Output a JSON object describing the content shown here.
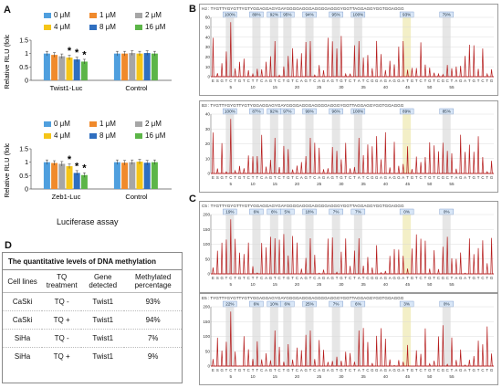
{
  "panel_a": {
    "letter": "A",
    "legend": [
      "0 μM",
      "1 μM",
      "2 μM",
      "4 μM",
      "8 μM",
      "16 μM"
    ],
    "colors": [
      "#4f9fde",
      "#f08a2c",
      "#a6a6a6",
      "#f5c518",
      "#2f6fc0",
      "#5cb548"
    ],
    "caption": "Luciferase assay"
  },
  "panel_b": {
    "letter": "B"
  },
  "panel_c": {
    "letter": "C"
  },
  "panel_d": {
    "letter": "D",
    "title": "The quantitative levels of DNA methylation",
    "headers": [
      "Cell lines",
      "TQ treatment",
      "Gene detected",
      "Methylated percentage"
    ],
    "rows": [
      [
        "CaSki",
        "TQ -",
        "Twist1",
        "93%"
      ],
      [
        "CaSki",
        "TQ +",
        "Twist1",
        "94%"
      ],
      [
        "SiHa",
        "TQ -",
        "Twist1",
        "7%"
      ],
      [
        "SiHa",
        "TQ +",
        "Twist1",
        "9%"
      ]
    ]
  },
  "chart_data": [
    {
      "type": "bar",
      "id": "twist1-luc",
      "ylabel": "Relative RLU (fold)",
      "ylim": [
        0,
        1.5
      ],
      "yticks": [
        0,
        0.5,
        1,
        1.5
      ],
      "categories": [
        "Twist1-Luc",
        "Control"
      ],
      "series": [
        {
          "name": "0 μM",
          "values": [
            1.0,
            1.0
          ]
        },
        {
          "name": "1 μM",
          "values": [
            0.95,
            1.0
          ]
        },
        {
          "name": "2 μM",
          "values": [
            0.9,
            1.02
          ]
        },
        {
          "name": "4 μM",
          "values": [
            0.85,
            1.0
          ]
        },
        {
          "name": "8 μM",
          "values": [
            0.78,
            1.02
          ]
        },
        {
          "name": "16 μM",
          "values": [
            0.7,
            1.0
          ]
        }
      ],
      "annotations": [
        "*",
        "*",
        "*"
      ],
      "legend": "top"
    },
    {
      "type": "bar",
      "id": "zeb1-luc",
      "ylabel": "Relative RLU (fold)",
      "ylim": [
        0,
        1.5
      ],
      "yticks": [
        0,
        0.5,
        1,
        1.5
      ],
      "categories": [
        "Zeb1-Luc",
        "Control"
      ],
      "series": [
        {
          "name": "0 μM",
          "values": [
            1.0,
            1.0
          ]
        },
        {
          "name": "1 μM",
          "values": [
            0.97,
            0.98
          ]
        },
        {
          "name": "2 μM",
          "values": [
            0.94,
            1.0
          ]
        },
        {
          "name": "4 μM",
          "values": [
            0.85,
            1.02
          ]
        },
        {
          "name": "8 μM",
          "values": [
            0.6,
            0.98
          ]
        },
        {
          "name": "16 μM",
          "values": [
            0.52,
            1.0
          ]
        }
      ],
      "annotations": [
        "*",
        "*",
        "*"
      ],
      "legend": "top"
    },
    {
      "type": "bar",
      "id": "pyro-b1",
      "ylim": [
        0,
        60
      ],
      "yticks": [
        0,
        10,
        20,
        30,
        40,
        50,
        60
      ],
      "header": "H2 : TYGTTYGYGTTYGTYGGAGGAGYGAYGGGGAGGGAGGGGAGGGYGGTTAGGAGGYGGTGGAGGG",
      "percentages": [
        "100%",
        "89%",
        "92%",
        "95%",
        "94%",
        "95%",
        "100%",
        "93%",
        "79%"
      ],
      "bases": "ESGTCTGTCTTCAGTCTGTCAGTCAGAGTGTCTATCGGAGAGGATGTCTGTCGCTAGATGTCTG",
      "xticks": [
        5,
        10,
        15,
        20,
        25,
        30,
        35,
        40,
        45,
        50,
        55
      ]
    },
    {
      "type": "bar",
      "id": "pyro-b2",
      "ylim": [
        0,
        40
      ],
      "yticks": [
        0,
        10,
        20,
        30,
        40
      ],
      "header": "B3 : TYGTTYGYGTTYGTYGGAGGAGYGAYGGGGAGGGAGGGGAGGGYGGTTAGGAGGYGGTGGAGGG",
      "percentages": [
        "100%",
        "87%",
        "92%",
        "97%",
        "99%",
        "96%",
        "100%",
        "89%",
        "85%"
      ],
      "bases": "ESGTCTGTCTTCAGTCTGTCAGTCAGAGTGTCTATCGGAGAGGATGTCTGTCGCTAGATGTCTG",
      "xticks": [
        5,
        10,
        15,
        20,
        25,
        30,
        35,
        40,
        45,
        50,
        55
      ]
    },
    {
      "type": "bar",
      "id": "pyro-c1",
      "ylim": [
        0,
        200
      ],
      "yticks": [
        0,
        50,
        100,
        150,
        200
      ],
      "header": "C5 : TYGTTYGYGTTYGTYGGAGGAGYGAYGGGGAGGGAGGGGAGGGYGGTTAGGAGGYGGTGGAGGG",
      "percentages": [
        "19%",
        "6%",
        "6%",
        "5%",
        "18%",
        "7%",
        "7%",
        "0%",
        "0%"
      ],
      "bases": "ESGTCTGTCTTCAGTCTGTCAGTCAGAGTGTCTATCGGAGAGGATGTCTGTCGCTAGATGTCTG",
      "xticks": [
        5,
        10,
        15,
        20,
        25,
        30,
        35,
        40,
        45,
        50,
        55
      ]
    },
    {
      "type": "bar",
      "id": "pyro-c2",
      "ylim": [
        0,
        200
      ],
      "yticks": [
        0,
        50,
        100,
        150,
        200
      ],
      "header": "E5 : TYGTTYGYGTTYGTYGGAGGAGYGAYGGGGAGGGAGGGGAGGGYGGTTAGGAGGYGGTGGAGGG",
      "percentages": [
        "22%",
        "6%",
        "10%",
        "6%",
        "25%",
        "7%",
        "6%",
        "3%",
        "0%"
      ],
      "bases": "ESGTCTGTCTTCAGTCTGTCAGTCAGAGTGTCTATCGGAGAGGATGTCTGTCGCTAGATGTCTG",
      "xticks": [
        5,
        10,
        15,
        20,
        25,
        30,
        35,
        40,
        45,
        50,
        55
      ]
    }
  ]
}
